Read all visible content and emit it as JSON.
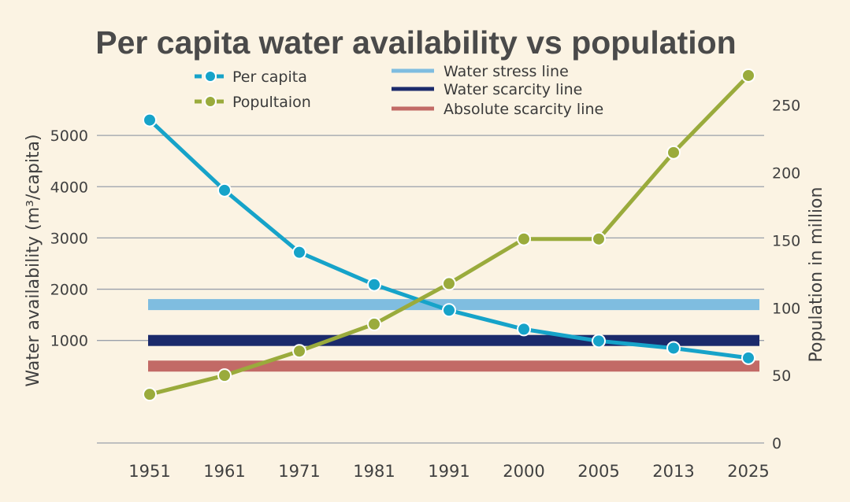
{
  "chart_data": {
    "type": "line",
    "title": "Per capita water availability vs population",
    "categories": [
      "1951",
      "1961",
      "1971",
      "1981",
      "1991",
      "2000",
      "2005",
      "2013",
      "2025"
    ],
    "y_left": {
      "label": "Water availability (m³/capita)",
      "ticks": [
        "1000",
        "2000",
        "3000",
        "4000",
        "5000"
      ],
      "range": [
        -1000,
        5800
      ]
    },
    "y_right": {
      "label": "Population in million",
      "ticks": [
        "0",
        "50",
        "100",
        "150",
        "200",
        "250"
      ],
      "range": [
        0,
        258
      ]
    },
    "series": [
      {
        "name": "Per capita",
        "axis": "left",
        "color": "#16a3c9",
        "values": [
          5300,
          3930,
          2720,
          2090,
          1590,
          1220,
          990,
          850,
          660
        ]
      },
      {
        "name": "Popultaion",
        "axis": "right",
        "color": "#9aab3c",
        "values": [
          36,
          50,
          68,
          88,
          118,
          151,
          151,
          215,
          272
        ]
      }
    ],
    "reference_lines": [
      {
        "name": "Water stress line",
        "value": 1700,
        "color": "#7fbde0"
      },
      {
        "name": "Water scarcity line",
        "value": 1000,
        "color": "#1b2a6b"
      },
      {
        "name": "Absolute scarcity line",
        "value": 500,
        "color": "#c26a66"
      }
    ],
    "grid": true,
    "legend_position": "top"
  }
}
